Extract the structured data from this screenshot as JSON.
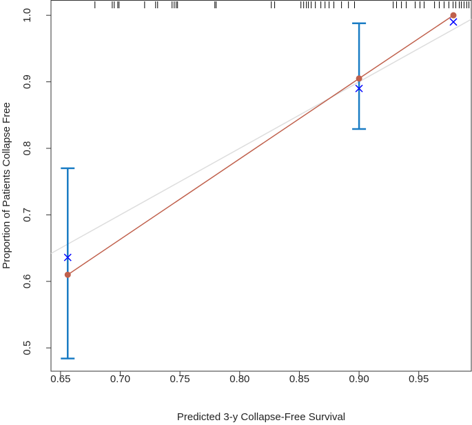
{
  "chart_data": {
    "type": "scatter",
    "xlabel": "Predicted 3-y Collapse-Free Survival",
    "ylabel": "Proportion of Patients Collapse Free",
    "x": [
      0.656,
      0.9,
      0.979
    ],
    "series": [
      {
        "color": "#c0604c",
        "values": [
          0.61,
          0.905,
          1.0
        ],
        "ci_lower": [
          0.484,
          0.829,
          null
        ],
        "ci_upper": [
          0.77,
          0.988,
          null
        ],
        "error_color": "#1a7cc4"
      },
      {
        "color": "#0000ff",
        "marker": "x",
        "values": [
          0.636,
          0.89,
          0.99
        ]
      }
    ],
    "reference_color": "#dddddd",
    "rug": [
      0.6788,
      0.6933,
      0.695,
      0.6979,
      0.699,
      0.7204,
      0.7296,
      0.7313,
      0.7434,
      0.7452,
      0.7469,
      0.748,
      0.7792,
      0.7803,
      0.8265,
      0.8293,
      0.8513,
      0.8536,
      0.8559,
      0.8576,
      0.8599,
      0.8634,
      0.868,
      0.8715,
      0.8749,
      0.8789,
      0.8853,
      0.8911,
      0.8962,
      0.9286,
      0.9314,
      0.9355,
      0.9395,
      0.947,
      0.951,
      0.9545,
      0.9632,
      0.9672,
      0.9712,
      0.9752,
      0.9787,
      0.981,
      0.9839,
      0.9856,
      0.9879,
      0.9902,
      0.992
    ],
    "xlim": [
      0.642,
      0.994
    ],
    "ylim": [
      0.465,
      1.023
    ],
    "xticks": [
      0.65,
      {
        "value": 0.7,
        "label": "0.70"
      },
      0.75,
      {
        "value": 0.8,
        "label": "0.80"
      },
      0.85,
      {
        "value": 0.9,
        "label": "0.90"
      },
      0.95
    ],
    "yticks": [
      0.5,
      0.6,
      0.7,
      0.8,
      0.9,
      {
        "value": 1,
        "label": "1.0"
      }
    ]
  }
}
